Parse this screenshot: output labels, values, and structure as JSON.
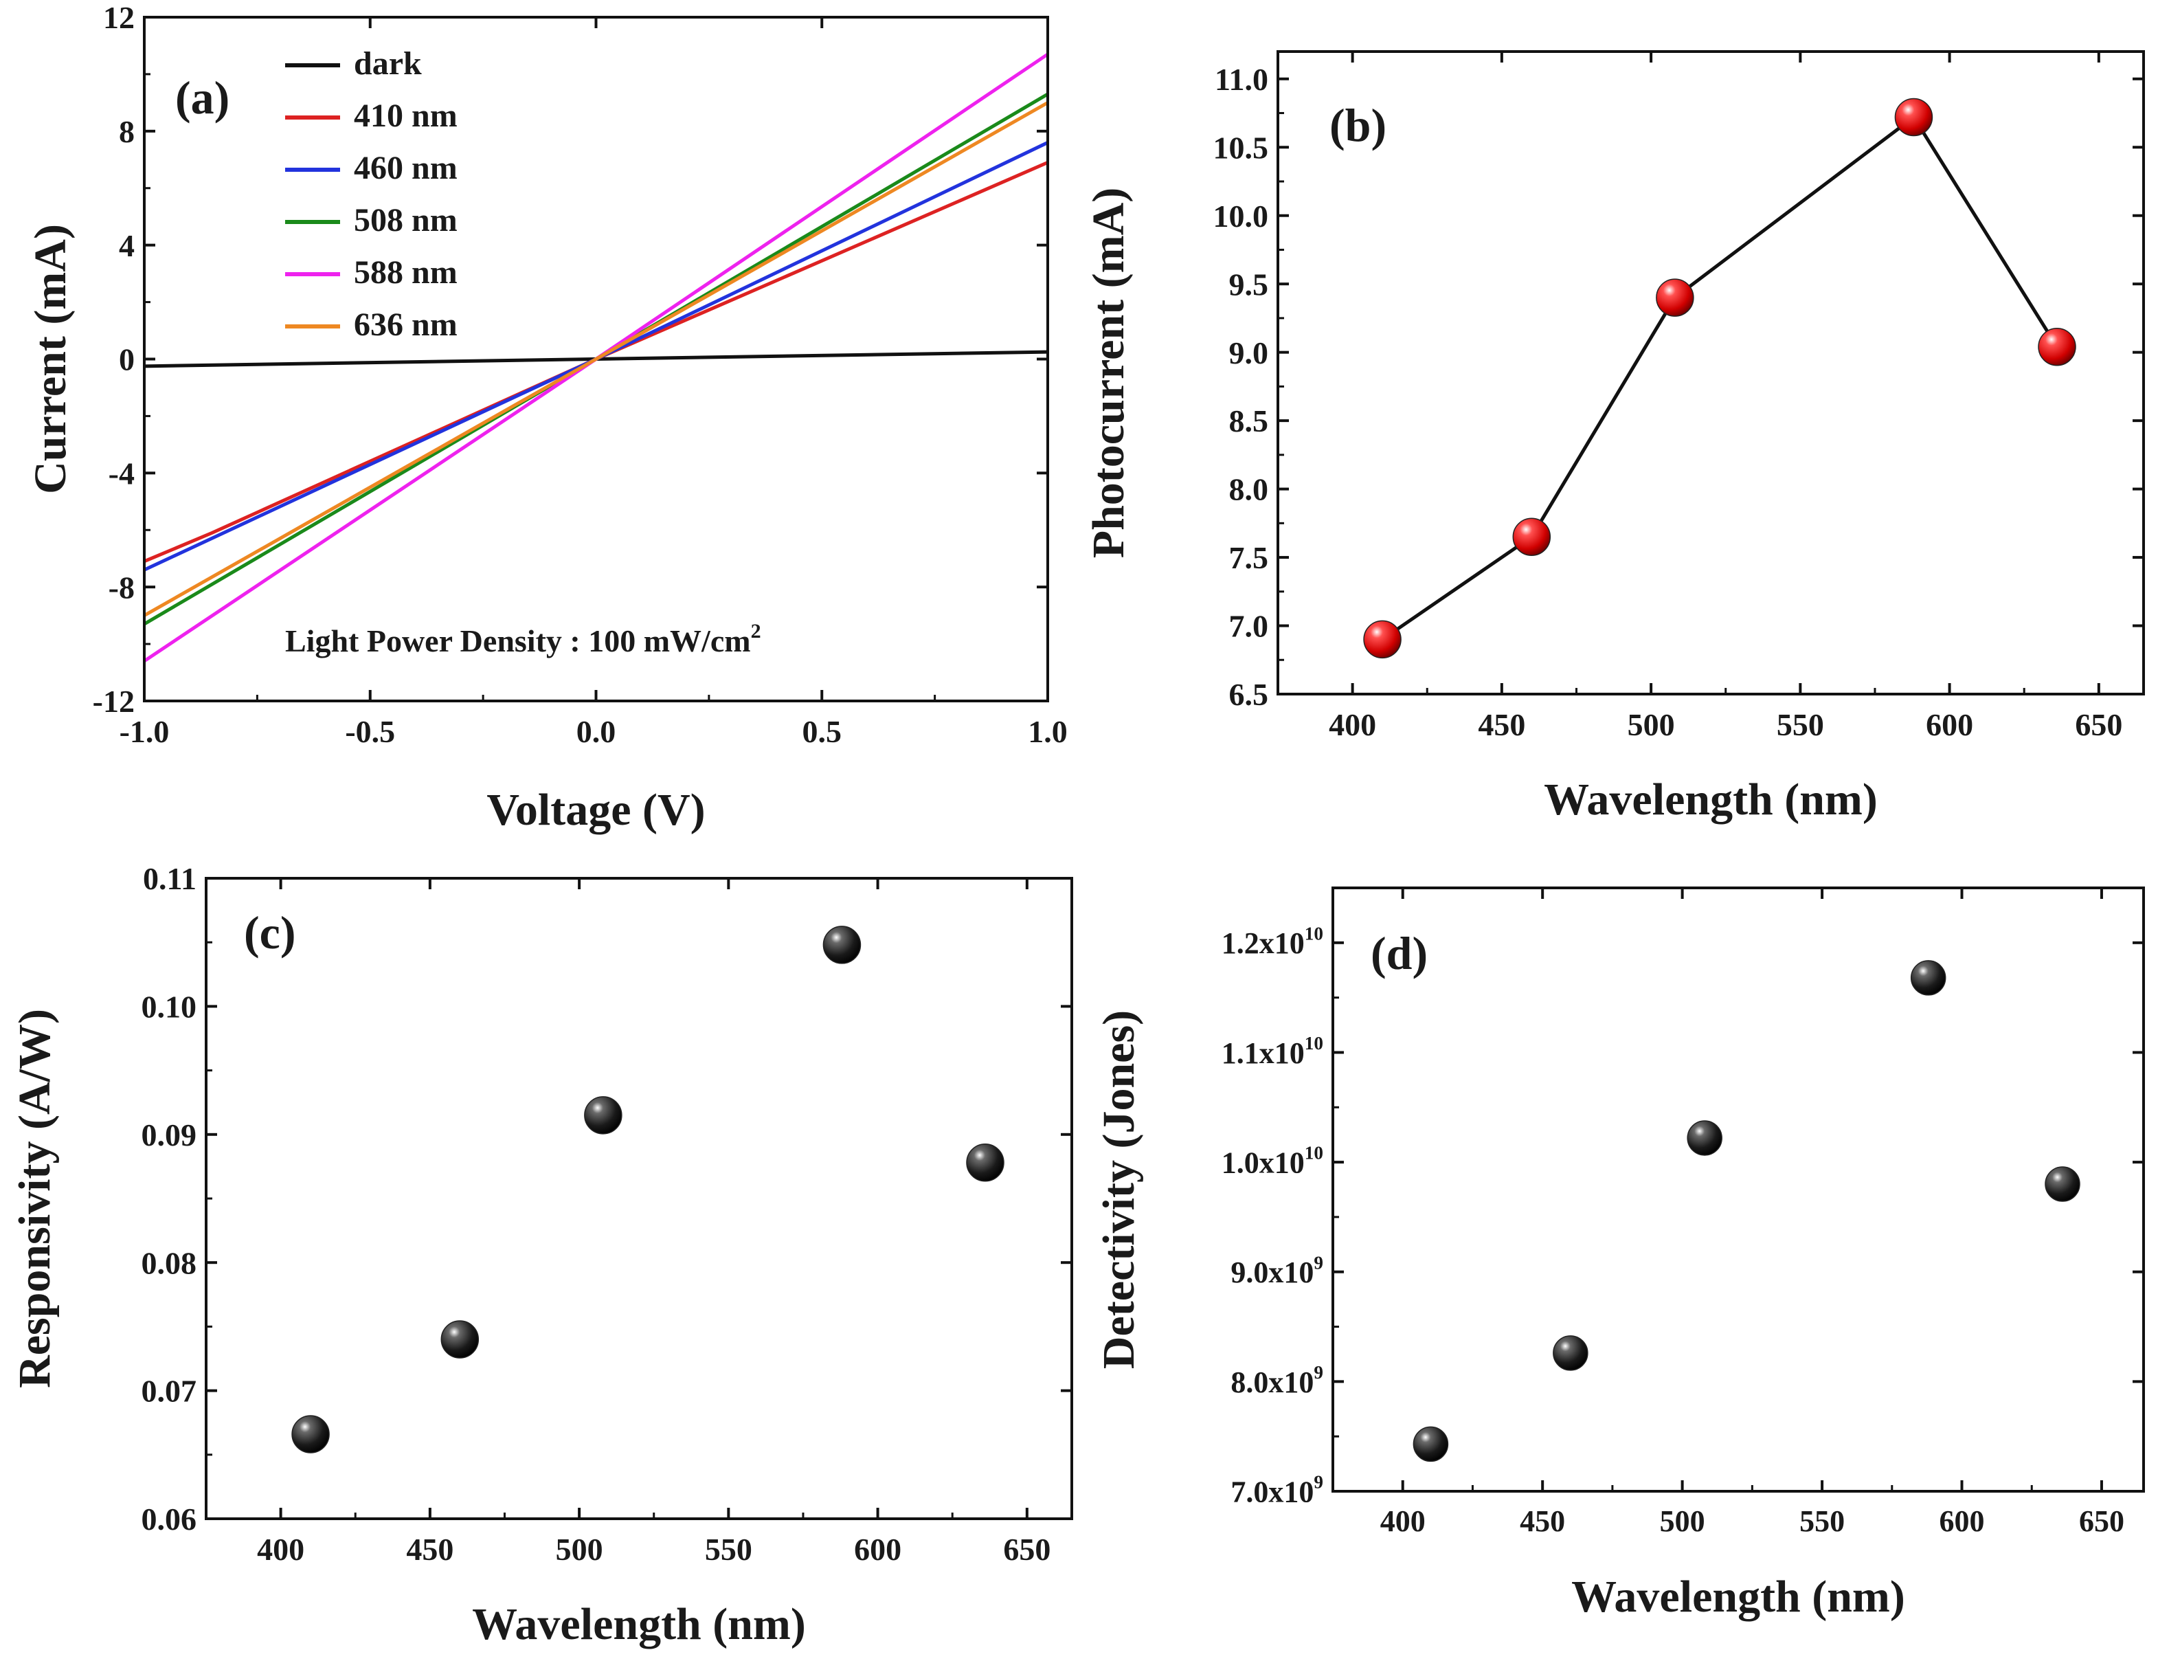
{
  "chart_data": [
    {
      "id": "a",
      "type": "line",
      "panel_label": "(a)",
      "xlabel": "Voltage (V)",
      "ylabel": "Current (mA)",
      "xlim": [
        -1.0,
        1.0
      ],
      "ylim": [
        -12,
        12
      ],
      "xticks": [
        -1.0,
        -0.5,
        0.0,
        0.5,
        1.0
      ],
      "xtick_labels": [
        "-1.0",
        "-0.5",
        "0.0",
        "0.5",
        "1.0"
      ],
      "yticks": [
        -12,
        -8,
        -4,
        0,
        4,
        8,
        12
      ],
      "ytick_labels": [
        "-12",
        "-8",
        "-4",
        "0",
        "4",
        "8",
        "12"
      ],
      "legend_position": "top-left",
      "annotation": {
        "text": "Light Power Density : 100 mW/cm",
        "superscript": "2"
      },
      "series": [
        {
          "name": "dark",
          "color": "#111111",
          "x": [
            -1.0,
            1.0
          ],
          "y": [
            -0.25,
            0.25
          ]
        },
        {
          "name": "410 nm",
          "color": "#dd2222",
          "x": [
            -1.0,
            -0.85,
            0.0,
            1.0
          ],
          "y": [
            -7.1,
            -6.1,
            0.0,
            6.9
          ]
        },
        {
          "name": "460 nm",
          "color": "#2233dd",
          "x": [
            -1.0,
            0.0,
            1.0
          ],
          "y": [
            -7.4,
            0.0,
            7.6
          ]
        },
        {
          "name": "508 nm",
          "color": "#1a8a1a",
          "x": [
            -1.0,
            0.0,
            1.0
          ],
          "y": [
            -9.3,
            0.0,
            9.3
          ]
        },
        {
          "name": "588 nm",
          "color": "#ee22ee",
          "x": [
            -1.0,
            0.0,
            1.0
          ],
          "y": [
            -10.6,
            0.0,
            10.7
          ]
        },
        {
          "name": "636 nm",
          "color": "#ee8822",
          "x": [
            -1.0,
            0.0,
            1.0
          ],
          "y": [
            -9.0,
            0.0,
            9.0
          ]
        }
      ]
    },
    {
      "id": "b",
      "type": "line",
      "panel_label": "(b)",
      "xlabel": "Wavelength (nm)",
      "ylabel": "Photocurrent (mA)",
      "xlim": [
        375,
        665
      ],
      "ylim": [
        6.5,
        11.2
      ],
      "xticks": [
        400,
        450,
        500,
        550,
        600,
        650
      ],
      "xtick_labels": [
        "400",
        "450",
        "500",
        "550",
        "600",
        "650"
      ],
      "yticks": [
        6.5,
        7.0,
        7.5,
        8.0,
        8.5,
        9.0,
        9.5,
        10.0,
        10.5,
        11.0
      ],
      "ytick_labels": [
        "6.5",
        "7.0",
        "7.5",
        "8.0",
        "8.5",
        "9.0",
        "9.5",
        "10.0",
        "10.5",
        "11.0"
      ],
      "marker_color": "#dd1111",
      "line_color": "#111111",
      "x": [
        410,
        460,
        508,
        588,
        636
      ],
      "y": [
        6.9,
        7.65,
        9.4,
        10.72,
        9.04
      ]
    },
    {
      "id": "c",
      "type": "scatter",
      "panel_label": "(c)",
      "xlabel": "Wavelength (nm)",
      "ylabel": "Responsivity (A/W)",
      "xlim": [
        375,
        665
      ],
      "ylim": [
        0.06,
        0.11
      ],
      "xticks": [
        400,
        450,
        500,
        550,
        600,
        650
      ],
      "xtick_labels": [
        "400",
        "450",
        "500",
        "550",
        "600",
        "650"
      ],
      "yticks": [
        0.06,
        0.07,
        0.08,
        0.09,
        0.1,
        0.11
      ],
      "ytick_labels": [
        "0.06",
        "0.07",
        "0.08",
        "0.09",
        "0.10",
        "0.11"
      ],
      "marker_color": "#111111",
      "x": [
        410,
        460,
        508,
        588,
        636
      ],
      "y": [
        0.0666,
        0.074,
        0.0915,
        0.1048,
        0.0878
      ]
    },
    {
      "id": "d",
      "type": "scatter",
      "panel_label": "(d)",
      "xlabel": "Wavelength (nm)",
      "ylabel": "Detectivity (Jones)",
      "xlim": [
        375,
        665
      ],
      "ylim": [
        7000000000.0,
        12500000000.0
      ],
      "xticks": [
        400,
        450,
        500,
        550,
        600,
        650
      ],
      "xtick_labels": [
        "400",
        "450",
        "500",
        "550",
        "600",
        "650"
      ],
      "yticks": [
        7000000000.0,
        8000000000.0,
        9000000000.0,
        10000000000.0,
        11000000000.0,
        12000000000.0
      ],
      "ytick_labels": [
        {
          "base": "7.0x10",
          "exp": "9"
        },
        {
          "base": "8.0x10",
          "exp": "9"
        },
        {
          "base": "9.0x10",
          "exp": "9"
        },
        {
          "base": "1.0x10",
          "exp": "10"
        },
        {
          "base": "1.1x10",
          "exp": "10"
        },
        {
          "base": "1.2x10",
          "exp": "10"
        }
      ],
      "marker_color": "#111111",
      "x": [
        410,
        460,
        508,
        588,
        636
      ],
      "y": [
        7430000000.0,
        8260000000.0,
        10220000000.0,
        11680000000.0,
        9800000000.0
      ]
    }
  ]
}
